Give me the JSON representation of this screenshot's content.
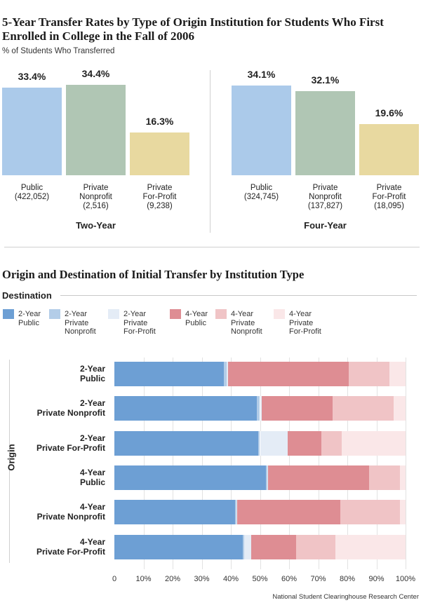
{
  "chart_data": [
    {
      "type": "bar",
      "title": "5-Year Transfer Rates by Type of Origin Institution for Students Who First Enrolled in College in the Fall of 2006",
      "ylabel": "% of Students Who Transferred",
      "ylim": [
        0,
        40
      ],
      "groups": [
        {
          "name": "Two-Year",
          "bars": [
            {
              "label": [
                "Public",
                "(422,052)"
              ],
              "value": 33.4,
              "value_label": "33.4%",
              "color": "#abcaea"
            },
            {
              "label": [
                "Private",
                "Nonprofit",
                "(2,516)"
              ],
              "value": 34.4,
              "value_label": "34.4%",
              "color": "#b0c6b4"
            },
            {
              "label": [
                "Private",
                "For-Profit",
                "(9,238)"
              ],
              "value": 16.3,
              "value_label": "16.3%",
              "color": "#e8d9a0"
            }
          ]
        },
        {
          "name": "Four-Year",
          "bars": [
            {
              "label": [
                "Public",
                "(324,745)"
              ],
              "value": 34.1,
              "value_label": "34.1%",
              "color": "#abcaea"
            },
            {
              "label": [
                "Private",
                "Nonprofit",
                "(137,827)"
              ],
              "value": 32.1,
              "value_label": "32.1%",
              "color": "#b0c6b4"
            },
            {
              "label": [
                "Private",
                "For-Profit",
                "(18,095)"
              ],
              "value": 19.6,
              "value_label": "19.6%",
              "color": "#e8d9a0"
            }
          ]
        }
      ]
    },
    {
      "type": "bar",
      "orientation": "horizontal",
      "stacked": true,
      "title": "Origin and Destination of Initial Transfer by Institution Type",
      "legend_title": "Destination",
      "yaxis_title": "Origin",
      "xlim": [
        0,
        100
      ],
      "xticks": [
        "0",
        "10%",
        "20%",
        "30%",
        "40%",
        "50%",
        "60%",
        "70%",
        "80%",
        "90%",
        "100%"
      ],
      "series": [
        {
          "name": [
            "2-Year",
            "Public"
          ],
          "color": "#6d9fd4"
        },
        {
          "name": [
            "2-Year",
            "Private",
            "Nonprofit"
          ],
          "color": "#b3cde8"
        },
        {
          "name": [
            "2-Year",
            "Private",
            "For-Profit"
          ],
          "color": "#e4ecf6"
        },
        {
          "name": [
            "4-Year",
            "Public"
          ],
          "color": "#de8d93"
        },
        {
          "name": [
            "4-Year",
            "Private",
            "Nonprofit"
          ],
          "color": "#f0c4c6"
        },
        {
          "name": [
            "4-Year",
            "Private",
            "For-Profit"
          ],
          "color": "#fae7e8"
        }
      ],
      "categories": [
        {
          "label": [
            "2-Year",
            "Public"
          ],
          "values": [
            37.5,
            1,
            0.5,
            41.5,
            14,
            5.5
          ]
        },
        {
          "label": [
            "2-Year",
            "Private Nonprofit"
          ],
          "values": [
            49,
            1,
            0.5,
            24.5,
            21,
            4
          ]
        },
        {
          "label": [
            "2-Year",
            "Private For-Profit"
          ],
          "values": [
            49.5,
            0.5,
            9.5,
            11.5,
            7,
            22
          ]
        },
        {
          "label": [
            "4-Year",
            "Public"
          ],
          "values": [
            52,
            0.5,
            0.2,
            34.8,
            10.5,
            2
          ]
        },
        {
          "label": [
            "4-Year",
            "Private Nonprofit"
          ],
          "values": [
            41.5,
            0.5,
            0.2,
            35.3,
            20.5,
            2
          ]
        },
        {
          "label": [
            "4-Year",
            "Private For-Profit"
          ],
          "values": [
            44,
            0.5,
            2.5,
            15.5,
            13.5,
            24
          ]
        }
      ]
    }
  ],
  "source": "National Student Clearinghouse Research Center"
}
